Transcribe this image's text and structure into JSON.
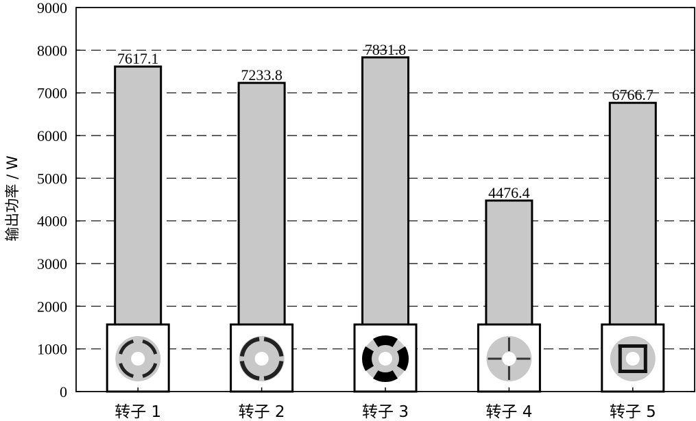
{
  "chart_data": {
    "type": "bar",
    "categories": [
      "转子 1",
      "转子 2",
      "转子 3",
      "转子 4",
      "转子 5"
    ],
    "values": [
      7617.1,
      7233.8,
      7831.8,
      4476.4,
      6766.7
    ],
    "value_labels": [
      "7617.1",
      "7233.8",
      "7831.8",
      "4476.4",
      "6766.7"
    ],
    "title": "",
    "xlabel": "",
    "ylabel": "输出功率 / W",
    "ylim": [
      0,
      9000
    ],
    "yticks": [
      0,
      1000,
      2000,
      3000,
      4000,
      5000,
      6000,
      7000,
      8000,
      9000
    ],
    "ytick_labels": [
      "0",
      "1000",
      "2000",
      "3000",
      "4000",
      "5000",
      "6000",
      "7000",
      "8000",
      "9000"
    ],
    "grid": "horizontal dashed",
    "bar_color": "#c8c8c8",
    "rotor_icons": [
      "rotor-1-icon",
      "rotor-2-icon",
      "rotor-3-icon",
      "rotor-4-icon",
      "rotor-5-icon"
    ]
  }
}
